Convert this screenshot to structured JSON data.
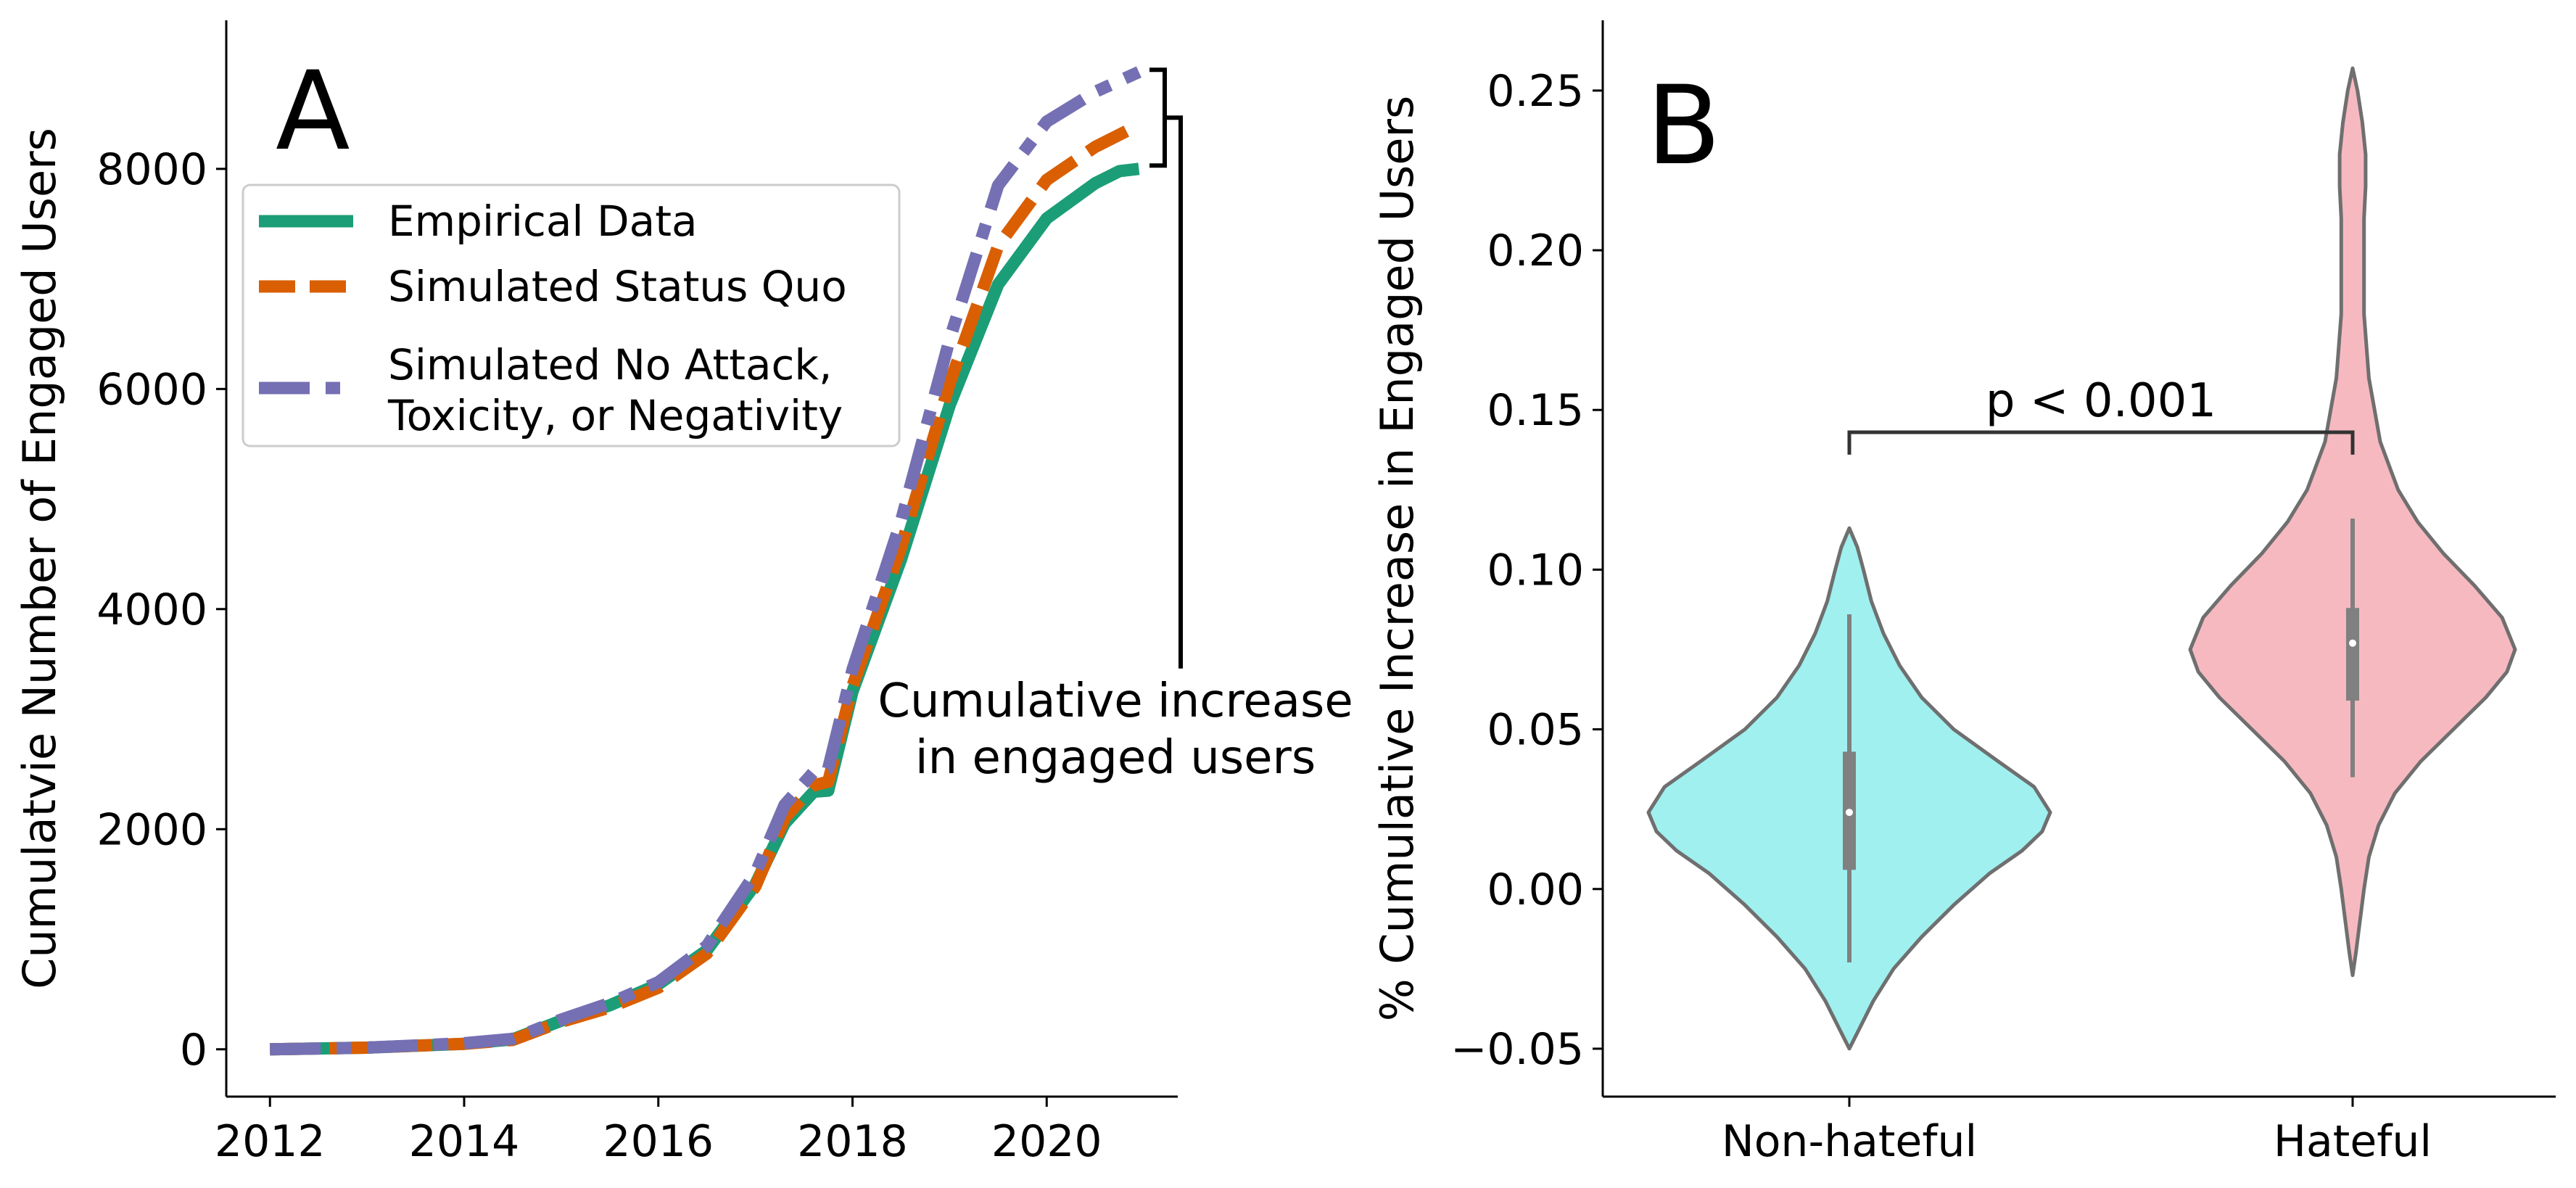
{
  "chart_data": [
    {
      "panel": "A",
      "type": "line",
      "panel_label": "A",
      "xlabel": "",
      "ylabel": "Cumulatvie Number of Engaged Users",
      "xlim": [
        2011.55,
        2021.35
      ],
      "ylim": [
        -430,
        9350
      ],
      "xticks": [
        2012,
        2014,
        2016,
        2018,
        2020
      ],
      "xtick_labels": [
        "2012",
        "2014",
        "2016",
        "2018",
        "2020"
      ],
      "yticks": [
        0,
        2000,
        4000,
        6000,
        8000
      ],
      "ytick_labels": [
        "0",
        "2000",
        "4000",
        "6000",
        "8000"
      ],
      "legend": {
        "placement": "upper-left",
        "entries": [
          "Empirical Data",
          "Simulated Status Quo",
          "Simulated No Attack,\nToxicity, or Negativity"
        ]
      },
      "annotation": {
        "text_lines": [
          "Cumulative increase",
          "in engaged users"
        ],
        "bracket_top": 8900,
        "bracket_bottom": 8030,
        "stem_x": 2021.35,
        "stem_bottom": 3460
      },
      "series": [
        {
          "name": "Empirical Data",
          "style": "solid",
          "color": "#1b9e77",
          "points": [
            [
              2012.0,
              0
            ],
            [
              2013.0,
              15
            ],
            [
              2014.0,
              50
            ],
            [
              2014.5,
              90
            ],
            [
              2015.0,
              260
            ],
            [
              2015.5,
              400
            ],
            [
              2016.0,
              590
            ],
            [
              2016.5,
              900
            ],
            [
              2017.0,
              1500
            ],
            [
              2017.3,
              2050
            ],
            [
              2017.6,
              2340
            ],
            [
              2017.75,
              2350
            ],
            [
              2018.0,
              3250
            ],
            [
              2018.5,
              4450
            ],
            [
              2019.0,
              5850
            ],
            [
              2019.5,
              6950
            ],
            [
              2020.0,
              7550
            ],
            [
              2020.5,
              7870
            ],
            [
              2020.75,
              7980
            ],
            [
              2020.95,
              8000
            ]
          ]
        },
        {
          "name": "Simulated Status Quo",
          "style": "dashed",
          "color": "#d95f02",
          "points": [
            [
              2012.0,
              0
            ],
            [
              2013.0,
              15
            ],
            [
              2014.0,
              50
            ],
            [
              2014.5,
              85
            ],
            [
              2015.0,
              250
            ],
            [
              2015.5,
              380
            ],
            [
              2016.0,
              560
            ],
            [
              2016.5,
              870
            ],
            [
              2017.0,
              1480
            ],
            [
              2017.3,
              2100
            ],
            [
              2017.6,
              2400
            ],
            [
              2017.75,
              2430
            ],
            [
              2018.0,
              3300
            ],
            [
              2018.5,
              4560
            ],
            [
              2019.0,
              6050
            ],
            [
              2019.5,
              7300
            ],
            [
              2020.0,
              7900
            ],
            [
              2020.5,
              8200
            ],
            [
              2020.95,
              8400
            ]
          ]
        },
        {
          "name": "Simulated No Attack, Toxicity, or Negativity",
          "style": "dashdot",
          "color": "#7570b3",
          "points": [
            [
              2012.0,
              0
            ],
            [
              2013.0,
              15
            ],
            [
              2014.0,
              55
            ],
            [
              2014.5,
              95
            ],
            [
              2015.0,
              270
            ],
            [
              2015.5,
              420
            ],
            [
              2016.0,
              610
            ],
            [
              2016.5,
              940
            ],
            [
              2017.0,
              1600
            ],
            [
              2017.3,
              2220
            ],
            [
              2017.6,
              2520
            ],
            [
              2017.75,
              2550
            ],
            [
              2018.0,
              3450
            ],
            [
              2018.5,
              4800
            ],
            [
              2019.0,
              6450
            ],
            [
              2019.5,
              7850
            ],
            [
              2020.0,
              8430
            ],
            [
              2020.5,
              8700
            ],
            [
              2020.95,
              8880
            ]
          ]
        }
      ]
    },
    {
      "panel": "B",
      "type": "violin",
      "panel_label": "B",
      "xlabel": "",
      "ylabel": "% Cumulative Increase in Engaged Users",
      "ylim": [
        -0.065,
        0.272
      ],
      "yticks": [
        -0.05,
        0.0,
        0.05,
        0.1,
        0.15,
        0.2,
        0.25
      ],
      "ytick_labels": [
        "−0.05",
        "0.00",
        "0.05",
        "0.10",
        "0.15",
        "0.20",
        "0.25"
      ],
      "categories": [
        "Non-hateful",
        "Hateful"
      ],
      "significance": {
        "label": "p < 0.001",
        "y": 0.143,
        "drop": 0.007
      },
      "violins": [
        {
          "category": "Non-hateful",
          "color": "#a0f0f0",
          "median": 0.024,
          "q1": 0.006,
          "q3": 0.043,
          "whisker_low": -0.023,
          "whisker_high": 0.086,
          "density_profile": [
            [
              -0.05,
              0.0
            ],
            [
              -0.045,
              0.04
            ],
            [
              -0.035,
              0.12
            ],
            [
              -0.025,
              0.22
            ],
            [
              -0.015,
              0.36
            ],
            [
              -0.005,
              0.52
            ],
            [
              0.005,
              0.7
            ],
            [
              0.012,
              0.86
            ],
            [
              0.018,
              0.96
            ],
            [
              0.024,
              1.0
            ],
            [
              0.032,
              0.92
            ],
            [
              0.04,
              0.74
            ],
            [
              0.05,
              0.52
            ],
            [
              0.06,
              0.36
            ],
            [
              0.07,
              0.25
            ],
            [
              0.08,
              0.17
            ],
            [
              0.09,
              0.11
            ],
            [
              0.1,
              0.07
            ],
            [
              0.107,
              0.04
            ],
            [
              0.113,
              0.0
            ]
          ]
        },
        {
          "category": "Hateful",
          "color": "#f7b9c0",
          "median": 0.077,
          "q1": 0.059,
          "q3": 0.088,
          "whisker_low": 0.035,
          "whisker_high": 0.116,
          "density_profile": [
            [
              -0.027,
              0.0
            ],
            [
              -0.02,
              0.02
            ],
            [
              -0.01,
              0.045
            ],
            [
              0.0,
              0.07
            ],
            [
              0.01,
              0.1
            ],
            [
              0.02,
              0.16
            ],
            [
              0.03,
              0.26
            ],
            [
              0.04,
              0.42
            ],
            [
              0.05,
              0.62
            ],
            [
              0.06,
              0.82
            ],
            [
              0.068,
              0.95
            ],
            [
              0.075,
              1.0
            ],
            [
              0.085,
              0.92
            ],
            [
              0.095,
              0.75
            ],
            [
              0.105,
              0.56
            ],
            [
              0.115,
              0.4
            ],
            [
              0.125,
              0.28
            ],
            [
              0.14,
              0.17
            ],
            [
              0.16,
              0.1
            ],
            [
              0.18,
              0.07
            ],
            [
              0.19,
              0.07
            ],
            [
              0.2,
              0.07
            ],
            [
              0.21,
              0.07
            ],
            [
              0.22,
              0.08
            ],
            [
              0.23,
              0.08
            ],
            [
              0.24,
              0.06
            ],
            [
              0.25,
              0.03
            ],
            [
              0.257,
              0.0
            ]
          ]
        }
      ]
    }
  ]
}
